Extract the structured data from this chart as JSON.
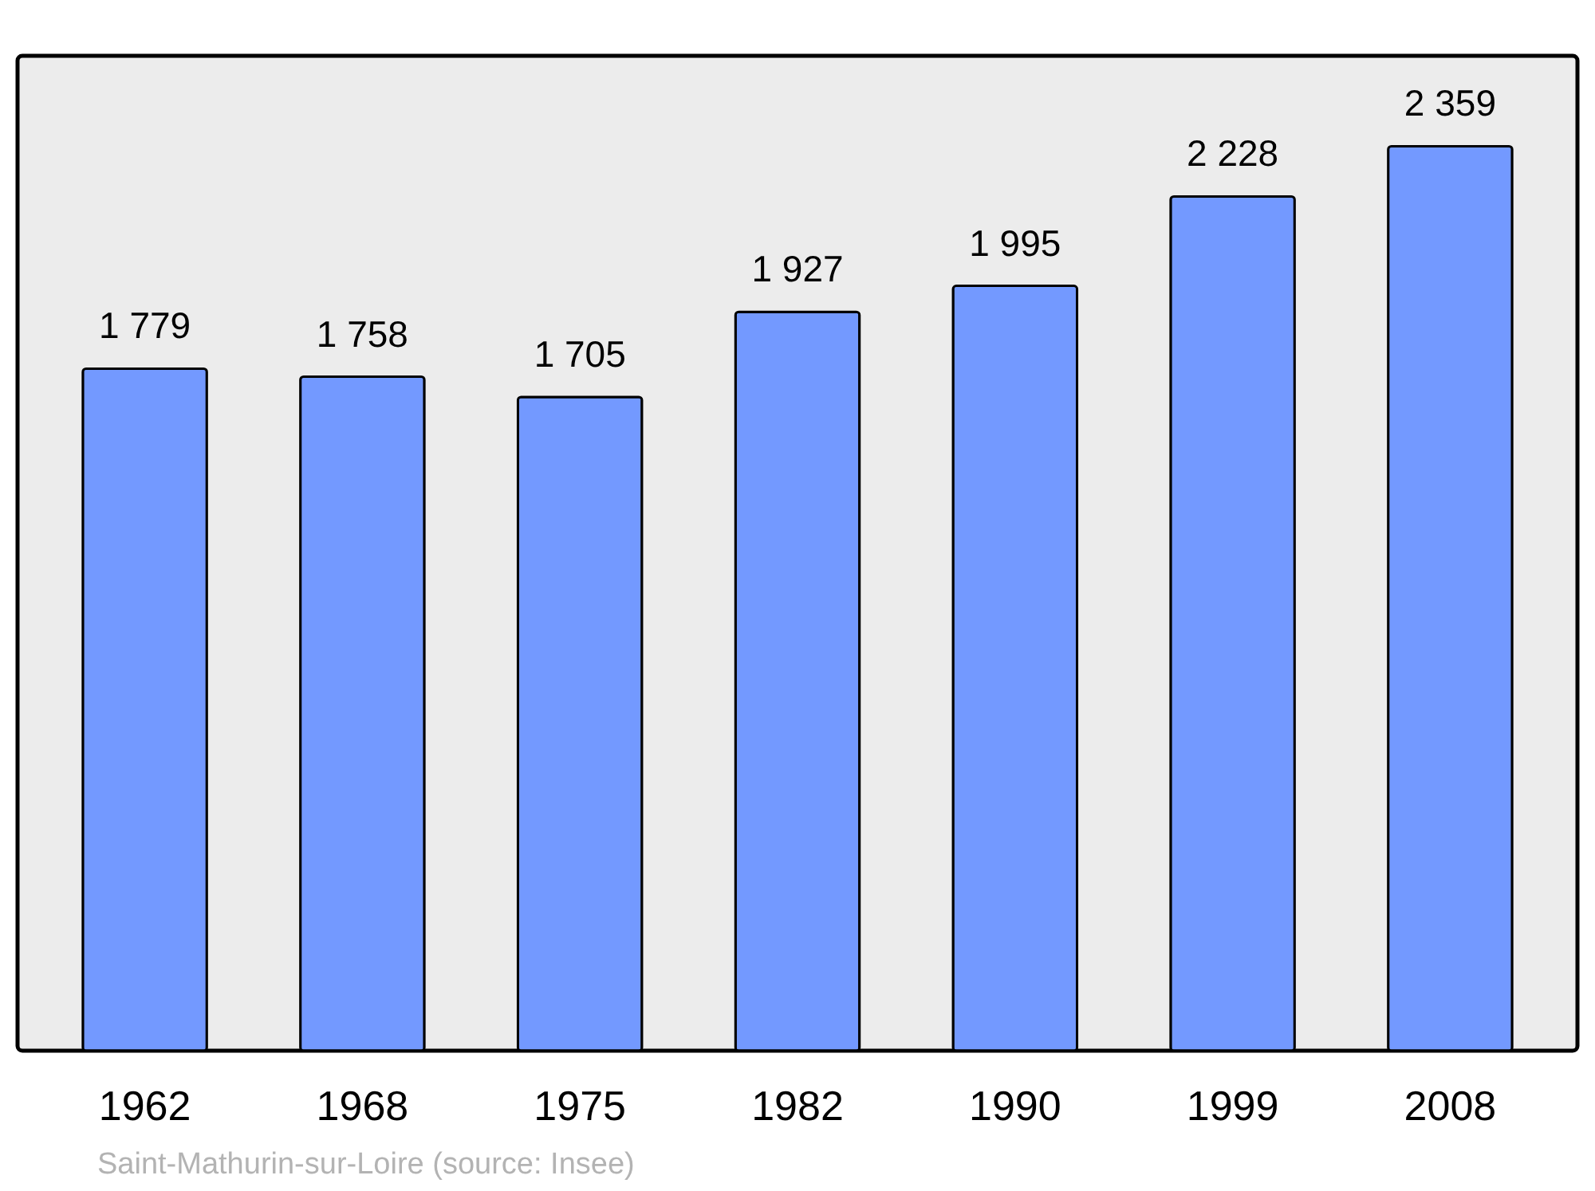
{
  "chart_data": {
    "type": "bar",
    "categories": [
      "1962",
      "1968",
      "1975",
      "1982",
      "1990",
      "1999",
      "2008"
    ],
    "values": [
      1779,
      1758,
      1705,
      1927,
      1995,
      2228,
      2359
    ],
    "value_labels": [
      "1 779",
      "1 758",
      "1 705",
      "1 927",
      "1 995",
      "2 228",
      "2 359"
    ],
    "color": "#7399ff",
    "grid": false,
    "annotations": [
      "Saint-Mathurin-sur-Loire    (source: Insee)"
    ]
  }
}
